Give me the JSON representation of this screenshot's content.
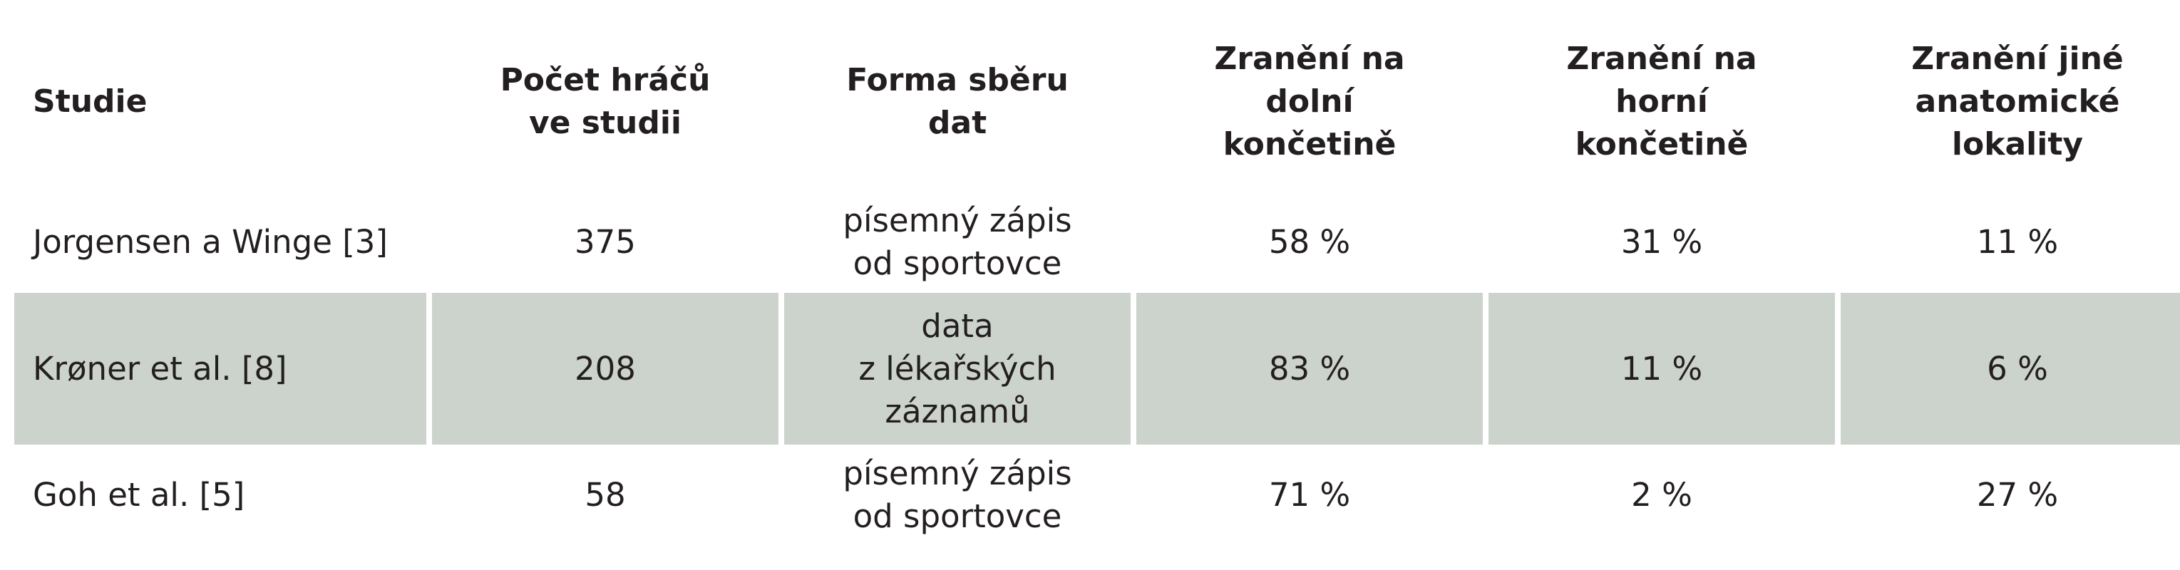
{
  "table": {
    "headers": [
      "Studie",
      "Počet hráčů\nve studii",
      "Forma sběru\ndat",
      "Zranění na\ndolní\nkončetině",
      "Zranění na\nhorní\nkončetině",
      "Zranění jiné\nanatomické\nlokality"
    ],
    "rows": [
      {
        "study": "Jorgensen a Winge [3]",
        "players": "375",
        "collection": "písemný zápis\nod sportovce",
        "lower": "58 %",
        "upper": "31 %",
        "other": "11 %"
      },
      {
        "study": "Krøner et al. [8]",
        "players": "208",
        "collection": "data\nz lékařských\nzáznamů",
        "lower": "83 %",
        "upper": "11 %",
        "other": "6 %"
      },
      {
        "study": "Goh et al. [5]",
        "players": "58",
        "collection": "písemný zápis\nod sportovce",
        "lower": "71 %",
        "upper": "2 %",
        "other": "27 %"
      }
    ]
  }
}
